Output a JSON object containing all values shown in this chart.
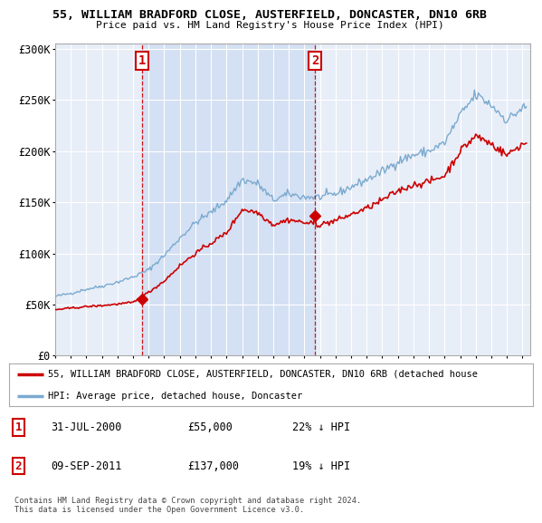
{
  "title": "55, WILLIAM BRADFORD CLOSE, AUSTERFIELD, DONCASTER, DN10 6RB",
  "subtitle": "Price paid vs. HM Land Registry's House Price Index (HPI)",
  "ylabel_ticks": [
    "£0",
    "£50K",
    "£100K",
    "£150K",
    "£200K",
    "£250K",
    "£300K"
  ],
  "ytick_values": [
    0,
    50000,
    100000,
    150000,
    200000,
    250000,
    300000
  ],
  "ylim": [
    0,
    305000
  ],
  "xlim_start": 1995.0,
  "xlim_end": 2025.5,
  "background_color": "#e8eef8",
  "legend_label_red": "55, WILLIAM BRADFORD CLOSE, AUSTERFIELD, DONCASTER, DN10 6RB (detached house",
  "legend_label_blue": "HPI: Average price, detached house, Doncaster",
  "point1_date": "31-JUL-2000",
  "point1_price": 55000,
  "point1_hpi_text": "22% ↓ HPI",
  "point1_x": 2000.58,
  "point2_date": "09-SEP-2011",
  "point2_price": 137000,
  "point2_x": 2011.69,
  "point2_hpi_text": "19% ↓ HPI",
  "annotation_color": "#cc0000",
  "footer_text": "Contains HM Land Registry data © Crown copyright and database right 2024.\nThis data is licensed under the Open Government Licence v3.0.",
  "red_line_color": "#cc0000",
  "blue_line_color": "#7aaad0",
  "shade_color": "#c8d8f0",
  "dashed_vline_color": "#cc0000"
}
